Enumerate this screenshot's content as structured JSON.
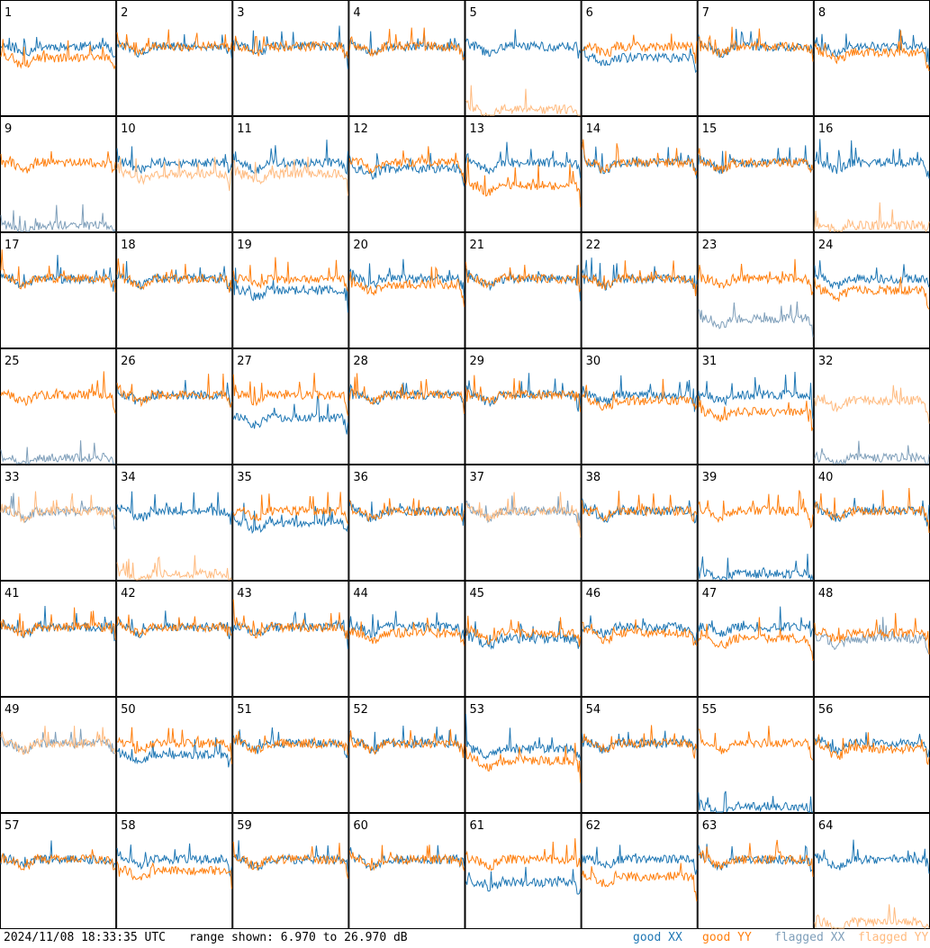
{
  "footer": {
    "timestamp": "2024/11/08 18:33:35 UTC",
    "range": "range shown: 6.970 to 26.970 dB"
  },
  "legend": [
    {
      "label": "good XX",
      "color": "#1f77b4"
    },
    {
      "label": "good YY",
      "color": "#ff7f0e"
    },
    {
      "label": "flagged XX",
      "color": "#7f9fba"
    },
    {
      "label": "flagged YY",
      "color": "#ffbb80"
    }
  ],
  "chart_data": {
    "type": "line",
    "grid": {
      "rows": 8,
      "cols": 8
    },
    "ylim": [
      6.97,
      26.97
    ],
    "series_colors": {
      "good_xx": "#1f77b4",
      "good_yy": "#ff7f0e",
      "flagged_xx": "#7f9fba",
      "flagged_yy": "#ffbb80"
    },
    "panels": [
      {
        "id": "1",
        "xx": "good",
        "yy": "good",
        "xx_level": 19,
        "yy_level": 17
      },
      {
        "id": "2",
        "xx": "good",
        "yy": "good",
        "xx_level": 19,
        "yy_level": 19
      },
      {
        "id": "3",
        "xx": "good",
        "yy": "good",
        "xx_level": 19,
        "yy_level": 19
      },
      {
        "id": "4",
        "xx": "good",
        "yy": "good",
        "xx_level": 19,
        "yy_level": 19
      },
      {
        "id": "5",
        "xx": "good",
        "yy": "flagged",
        "xx_level": 19,
        "yy_level": 8
      },
      {
        "id": "6",
        "xx": "good",
        "yy": "good",
        "xx_level": 17,
        "yy_level": 19
      },
      {
        "id": "7",
        "xx": "good",
        "yy": "good",
        "xx_level": 19,
        "yy_level": 19
      },
      {
        "id": "8",
        "xx": "good",
        "yy": "good",
        "xx_level": 19,
        "yy_level": 18
      },
      {
        "id": "9",
        "xx": "flagged",
        "yy": "good",
        "xx_level": 8,
        "yy_level": 19
      },
      {
        "id": "10",
        "xx": "good",
        "yy": "flagged",
        "xx_level": 19,
        "yy_level": 17
      },
      {
        "id": "11",
        "xx": "good",
        "yy": "flagged",
        "xx_level": 19,
        "yy_level": 17
      },
      {
        "id": "12",
        "xx": "good",
        "yy": "good",
        "xx_level": 18,
        "yy_level": 19
      },
      {
        "id": "13",
        "xx": "good",
        "yy": "good",
        "xx_level": 19,
        "yy_level": 15
      },
      {
        "id": "14",
        "xx": "good",
        "yy": "good",
        "xx_level": 19,
        "yy_level": 19
      },
      {
        "id": "15",
        "xx": "good",
        "yy": "good",
        "xx_level": 19,
        "yy_level": 19
      },
      {
        "id": "16",
        "xx": "good",
        "yy": "flagged",
        "xx_level": 19,
        "yy_level": 8
      },
      {
        "id": "17",
        "xx": "good",
        "yy": "good",
        "xx_level": 19,
        "yy_level": 19
      },
      {
        "id": "18",
        "xx": "good",
        "yy": "good",
        "xx_level": 19,
        "yy_level": 19
      },
      {
        "id": "19",
        "xx": "good",
        "yy": "good",
        "xx_level": 17,
        "yy_level": 19
      },
      {
        "id": "20",
        "xx": "good",
        "yy": "good",
        "xx_level": 19,
        "yy_level": 18
      },
      {
        "id": "21",
        "xx": "good",
        "yy": "good",
        "xx_level": 19,
        "yy_level": 19
      },
      {
        "id": "22",
        "xx": "good",
        "yy": "good",
        "xx_level": 19,
        "yy_level": 19
      },
      {
        "id": "23",
        "xx": "flagged",
        "yy": "good",
        "xx_level": 12,
        "yy_level": 19
      },
      {
        "id": "24",
        "xx": "good",
        "yy": "good",
        "xx_level": 19,
        "yy_level": 17
      },
      {
        "id": "25",
        "xx": "flagged",
        "yy": "good",
        "xx_level": 8,
        "yy_level": 19
      },
      {
        "id": "26",
        "xx": "good",
        "yy": "good",
        "xx_level": 19,
        "yy_level": 19
      },
      {
        "id": "27",
        "xx": "good",
        "yy": "good",
        "xx_level": 15,
        "yy_level": 19
      },
      {
        "id": "28",
        "xx": "good",
        "yy": "good",
        "xx_level": 19,
        "yy_level": 19
      },
      {
        "id": "29",
        "xx": "good",
        "yy": "good",
        "xx_level": 19,
        "yy_level": 19
      },
      {
        "id": "30",
        "xx": "good",
        "yy": "good",
        "xx_level": 19,
        "yy_level": 18
      },
      {
        "id": "31",
        "xx": "good",
        "yy": "good",
        "xx_level": 19,
        "yy_level": 16
      },
      {
        "id": "32",
        "xx": "flagged",
        "yy": "flagged",
        "xx_level": 8,
        "yy_level": 18
      },
      {
        "id": "33",
        "xx": "flagged",
        "yy": "flagged",
        "xx_level": 19,
        "yy_level": 19
      },
      {
        "id": "34",
        "xx": "good",
        "yy": "flagged",
        "xx_level": 19,
        "yy_level": 8
      },
      {
        "id": "35",
        "xx": "good",
        "yy": "good",
        "xx_level": 17,
        "yy_level": 19
      },
      {
        "id": "36",
        "xx": "good",
        "yy": "good",
        "xx_level": 19,
        "yy_level": 19
      },
      {
        "id": "37",
        "xx": "flagged",
        "yy": "flagged",
        "xx_level": 19,
        "yy_level": 19
      },
      {
        "id": "38",
        "xx": "good",
        "yy": "good",
        "xx_level": 19,
        "yy_level": 19
      },
      {
        "id": "39",
        "xx": "good",
        "yy": "good",
        "xx_level": 8,
        "yy_level": 19
      },
      {
        "id": "40",
        "xx": "good",
        "yy": "good",
        "xx_level": 19,
        "yy_level": 19
      },
      {
        "id": "41",
        "xx": "good",
        "yy": "good",
        "xx_level": 19,
        "yy_level": 19
      },
      {
        "id": "42",
        "xx": "good",
        "yy": "good",
        "xx_level": 19,
        "yy_level": 19
      },
      {
        "id": "43",
        "xx": "good",
        "yy": "good",
        "xx_level": 19,
        "yy_level": 19
      },
      {
        "id": "44",
        "xx": "good",
        "yy": "good",
        "xx_level": 19,
        "yy_level": 18
      },
      {
        "id": "45",
        "xx": "good",
        "yy": "good",
        "xx_level": 17,
        "yy_level": 18
      },
      {
        "id": "46",
        "xx": "good",
        "yy": "good",
        "xx_level": 19,
        "yy_level": 18
      },
      {
        "id": "47",
        "xx": "good",
        "yy": "good",
        "xx_level": 19,
        "yy_level": 17
      },
      {
        "id": "48",
        "xx": "flagged",
        "yy": "good",
        "xx_level": 17,
        "yy_level": 18
      },
      {
        "id": "49",
        "xx": "flagged",
        "yy": "flagged",
        "xx_level": 19,
        "yy_level": 19
      },
      {
        "id": "50",
        "xx": "good",
        "yy": "good",
        "xx_level": 17,
        "yy_level": 19
      },
      {
        "id": "51",
        "xx": "good",
        "yy": "good",
        "xx_level": 19,
        "yy_level": 19
      },
      {
        "id": "52",
        "xx": "good",
        "yy": "good",
        "xx_level": 19,
        "yy_level": 19
      },
      {
        "id": "53",
        "xx": "good",
        "yy": "good",
        "xx_level": 18,
        "yy_level": 16
      },
      {
        "id": "54",
        "xx": "good",
        "yy": "good",
        "xx_level": 19,
        "yy_level": 19
      },
      {
        "id": "55",
        "xx": "good",
        "yy": "good",
        "xx_level": 8,
        "yy_level": 19
      },
      {
        "id": "56",
        "xx": "good",
        "yy": "good",
        "xx_level": 19,
        "yy_level": 18
      },
      {
        "id": "57",
        "xx": "good",
        "yy": "good",
        "xx_level": 19,
        "yy_level": 19
      },
      {
        "id": "58",
        "xx": "good",
        "yy": "good",
        "xx_level": 19,
        "yy_level": 17
      },
      {
        "id": "59",
        "xx": "good",
        "yy": "good",
        "xx_level": 19,
        "yy_level": 19
      },
      {
        "id": "60",
        "xx": "good",
        "yy": "good",
        "xx_level": 19,
        "yy_level": 19
      },
      {
        "id": "61",
        "xx": "good",
        "yy": "good",
        "xx_level": 15,
        "yy_level": 19
      },
      {
        "id": "62",
        "xx": "good",
        "yy": "good",
        "xx_level": 19,
        "yy_level": 16
      },
      {
        "id": "63",
        "xx": "good",
        "yy": "good",
        "xx_level": 19,
        "yy_level": 19
      },
      {
        "id": "64",
        "xx": "good",
        "yy": "flagged",
        "xx_level": 19,
        "yy_level": 8
      }
    ]
  }
}
